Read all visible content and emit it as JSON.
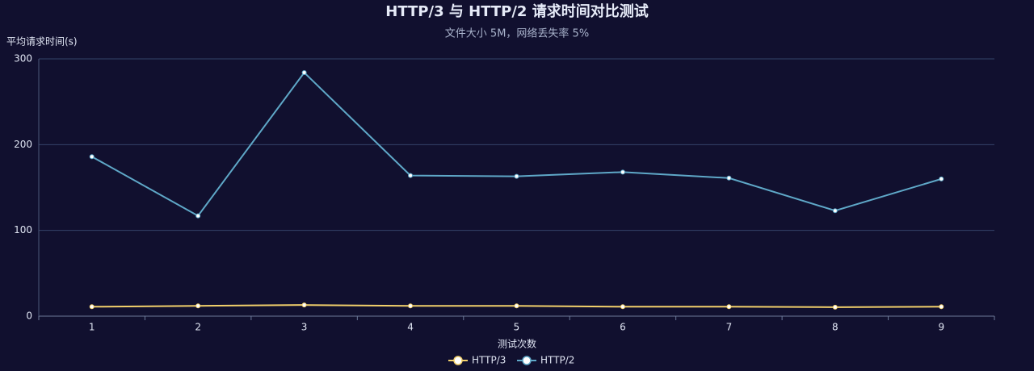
{
  "chart_data": {
    "type": "line",
    "title": "HTTP/3 与 HTTP/2 请求时间对比测试",
    "subtitle": "文件大小 5M，网络丢失率 5%",
    "y_label": "平均请求时间(s)",
    "x_label": "测试次数",
    "categories": [
      "1",
      "2",
      "3",
      "4",
      "5",
      "6",
      "7",
      "8",
      "9"
    ],
    "series": [
      {
        "name": "HTTP/3",
        "color": "#f2d06b",
        "values": [
          11,
          12,
          13,
          12,
          12,
          11,
          11,
          10.5,
          11
        ]
      },
      {
        "name": "HTTP/2",
        "color": "#5fa8c8",
        "values": [
          186,
          117,
          284,
          164,
          163,
          168,
          161,
          123,
          160
        ]
      }
    ],
    "ylim": [
      0,
      300
    ],
    "yticks": [
      0,
      100,
      200,
      300
    ],
    "grid": true,
    "legend": "bottom"
  }
}
